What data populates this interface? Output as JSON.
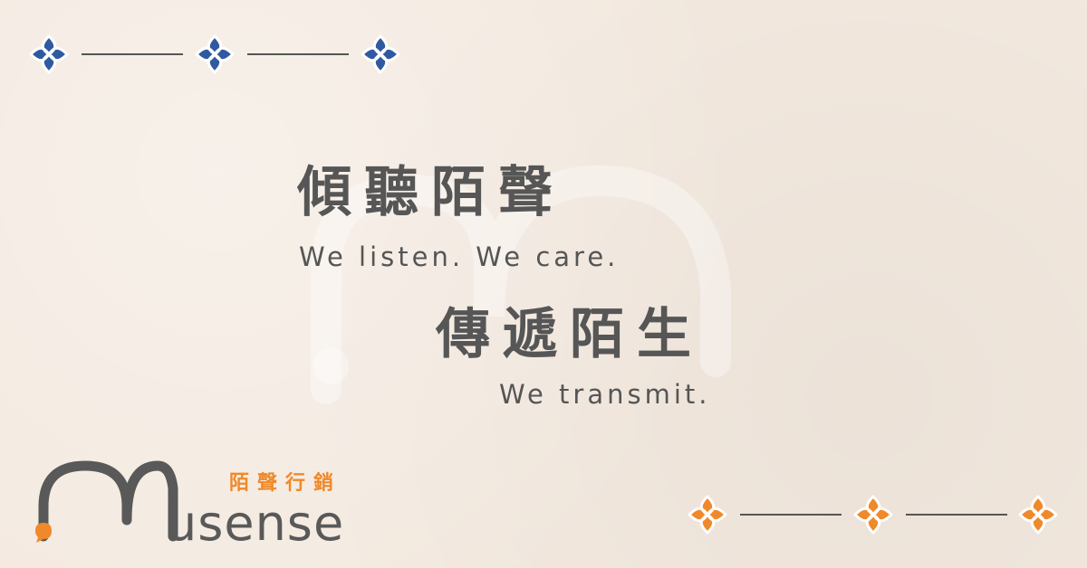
{
  "headline": {
    "line1": "傾聽陌聲",
    "sub1": "We listen. We care.",
    "line2": "傳遞陌生",
    "sub2": "We transmit."
  },
  "logo": {
    "wordmark": "usense",
    "chinese": "陌聲行銷",
    "icon": "musense-arch-logo"
  },
  "ornaments": {
    "top_color": "#2f5aa0",
    "bottom_color": "#f0892a",
    "icon": "four-petal-flower-icon"
  },
  "colors": {
    "background": "#f3e9df",
    "text": "#565656",
    "accent_orange": "#f0892a",
    "accent_blue": "#2f5aa0"
  }
}
